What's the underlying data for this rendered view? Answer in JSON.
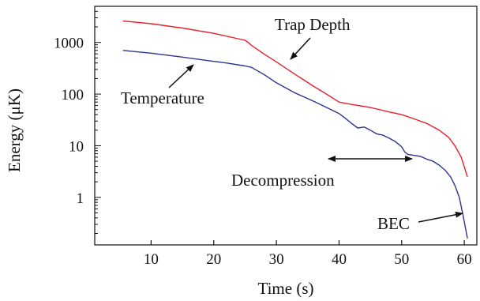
{
  "chart_data": {
    "type": "line",
    "xlabel": "Time (s)",
    "ylabel": "Energy (μK)",
    "xlim": [
      1,
      62
    ],
    "ylim": [
      0.12,
      5000
    ],
    "yscale": "log",
    "grid": false,
    "x_ticks": [
      10,
      20,
      30,
      40,
      50,
      60
    ],
    "y_ticks": [
      {
        "value": 1,
        "label": "1"
      },
      {
        "value": 10,
        "label": "10"
      },
      {
        "value": 100,
        "label": "100"
      },
      {
        "value": 1000,
        "label": "1000"
      }
    ],
    "series": [
      {
        "key": "trap-depth",
        "color": "#e8202a",
        "points": [
          [
            5.5,
            2600
          ],
          [
            10,
            2300
          ],
          [
            15,
            1900
          ],
          [
            20,
            1500
          ],
          [
            25,
            1100
          ],
          [
            25.5,
            1000
          ],
          [
            26,
            880
          ],
          [
            28,
            600
          ],
          [
            30,
            420
          ],
          [
            33,
            240
          ],
          [
            36,
            140
          ],
          [
            38,
            100
          ],
          [
            40,
            70
          ],
          [
            42,
            63
          ],
          [
            45,
            55
          ],
          [
            48,
            45
          ],
          [
            50,
            40
          ],
          [
            52,
            33
          ],
          [
            54,
            27
          ],
          [
            56,
            20
          ],
          [
            57.5,
            14.5
          ],
          [
            58.5,
            10
          ],
          [
            59.5,
            6
          ],
          [
            60.5,
            2.5
          ]
        ]
      },
      {
        "key": "temperature",
        "color": "#2b3590",
        "points": [
          [
            5.5,
            700
          ],
          [
            10,
            620
          ],
          [
            15,
            520
          ],
          [
            20,
            430
          ],
          [
            22,
            400
          ],
          [
            25,
            350
          ],
          [
            26,
            330
          ],
          [
            28,
            240
          ],
          [
            30,
            165
          ],
          [
            33,
            105
          ],
          [
            36,
            72
          ],
          [
            38,
            55
          ],
          [
            40,
            42
          ],
          [
            41,
            34
          ],
          [
            42,
            27
          ],
          [
            43,
            22
          ],
          [
            44,
            23
          ],
          [
            45,
            20
          ],
          [
            46,
            17
          ],
          [
            47,
            16
          ],
          [
            48,
            14
          ],
          [
            49,
            12
          ],
          [
            50,
            9.5
          ],
          [
            50.5,
            7.5
          ],
          [
            51,
            6.8
          ],
          [
            52,
            6.5
          ],
          [
            53,
            6.2
          ],
          [
            54,
            5.5
          ],
          [
            55,
            5
          ],
          [
            56,
            4.2
          ],
          [
            57,
            3.3
          ],
          [
            57.8,
            2.5
          ],
          [
            58.5,
            1.7
          ],
          [
            59.2,
            1.0
          ],
          [
            59.8,
            0.45
          ],
          [
            60.5,
            0.16
          ]
        ]
      }
    ],
    "annotations": [
      {
        "key": "trap-depth",
        "text": "Trap Depth"
      },
      {
        "key": "temperature",
        "text": "Temperature"
      },
      {
        "key": "decompression",
        "text": "Decompression"
      },
      {
        "key": "bec",
        "text": "BEC"
      }
    ]
  }
}
